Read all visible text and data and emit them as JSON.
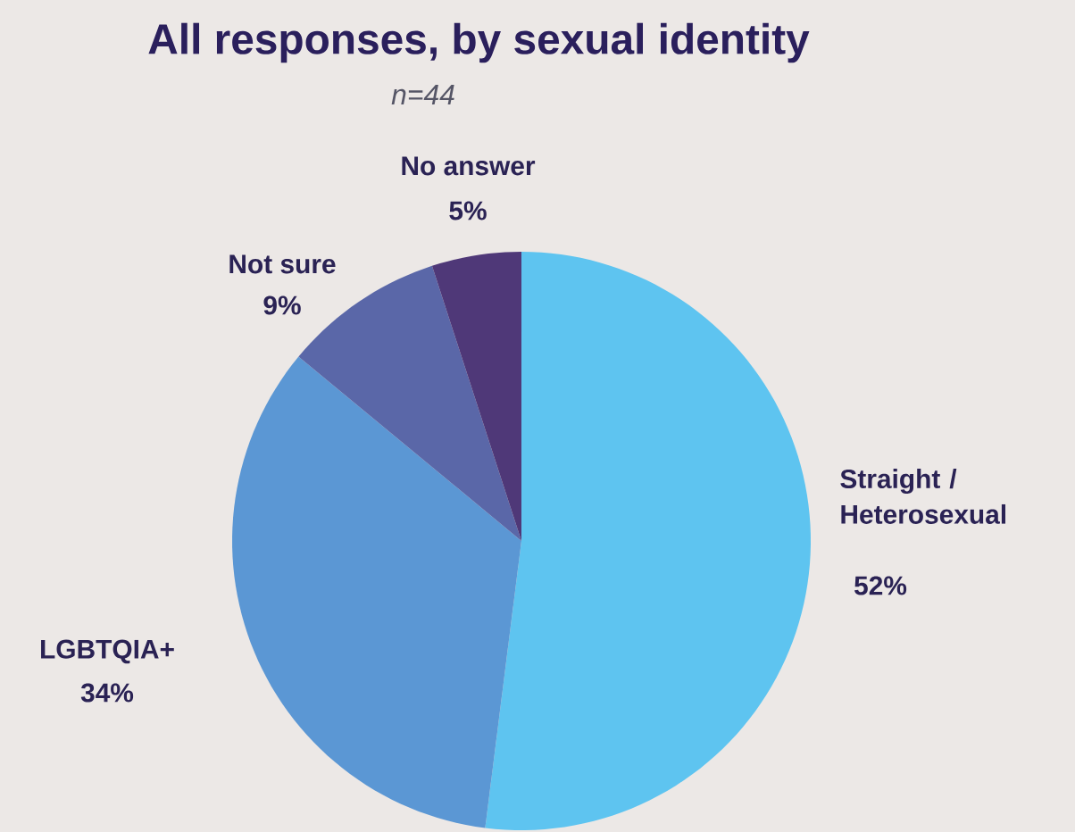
{
  "chart_data": {
    "type": "pie",
    "title": "All responses, by sexual identity",
    "subtitle": "n=44",
    "categories": [
      "Straight / Heterosexual",
      "LGBTQIA+",
      "Not sure",
      "No answer"
    ],
    "values": [
      52,
      34,
      9,
      5
    ],
    "value_labels": [
      "52%",
      "34%",
      "9%",
      "5%"
    ],
    "colors": [
      "#5ec4f0",
      "#5b97d4",
      "#5a67a8",
      "#4f3878"
    ]
  }
}
